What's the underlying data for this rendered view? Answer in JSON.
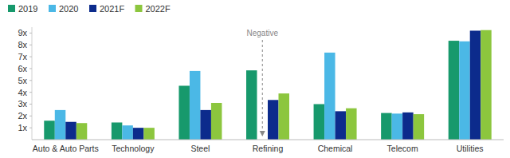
{
  "chart_data": {
    "type": "bar",
    "categories": [
      "Auto & Auto Parts",
      "Technology",
      "Steel",
      "Refining",
      "Chemical",
      "Telecom",
      "Utilities"
    ],
    "series": [
      {
        "name": "2019",
        "color": "#17996c",
        "values": [
          1.6,
          1.45,
          4.55,
          5.85,
          3.0,
          2.25,
          8.35
        ]
      },
      {
        "name": "2020",
        "color": "#4bb8e6",
        "values": [
          2.5,
          1.2,
          5.8,
          null,
          7.35,
          2.2,
          8.3
        ]
      },
      {
        "name": "2021F",
        "color": "#0c2b8c",
        "values": [
          1.5,
          1.0,
          2.5,
          3.35,
          2.4,
          2.3,
          9.2
        ]
      },
      {
        "name": "2022F",
        "color": "#8cc63e",
        "values": [
          1.4,
          1.0,
          3.1,
          3.9,
          2.65,
          2.15,
          9.25
        ]
      }
    ],
    "annotations": [
      "Negative"
    ],
    "ylim": [
      0,
      9.5
    ],
    "yticks": [
      {
        "value": 1,
        "label": "1x"
      },
      {
        "value": 2,
        "label": "2x"
      },
      {
        "value": 3,
        "label": "3x"
      },
      {
        "value": 4,
        "label": "4x"
      },
      {
        "value": 5,
        "label": "5x"
      },
      {
        "value": 6,
        "label": "6x"
      },
      {
        "value": 7,
        "label": "7x"
      },
      {
        "value": 8,
        "label": "8x"
      },
      {
        "value": 9,
        "label": "9x"
      }
    ],
    "grid": false,
    "legend": "top-left"
  }
}
